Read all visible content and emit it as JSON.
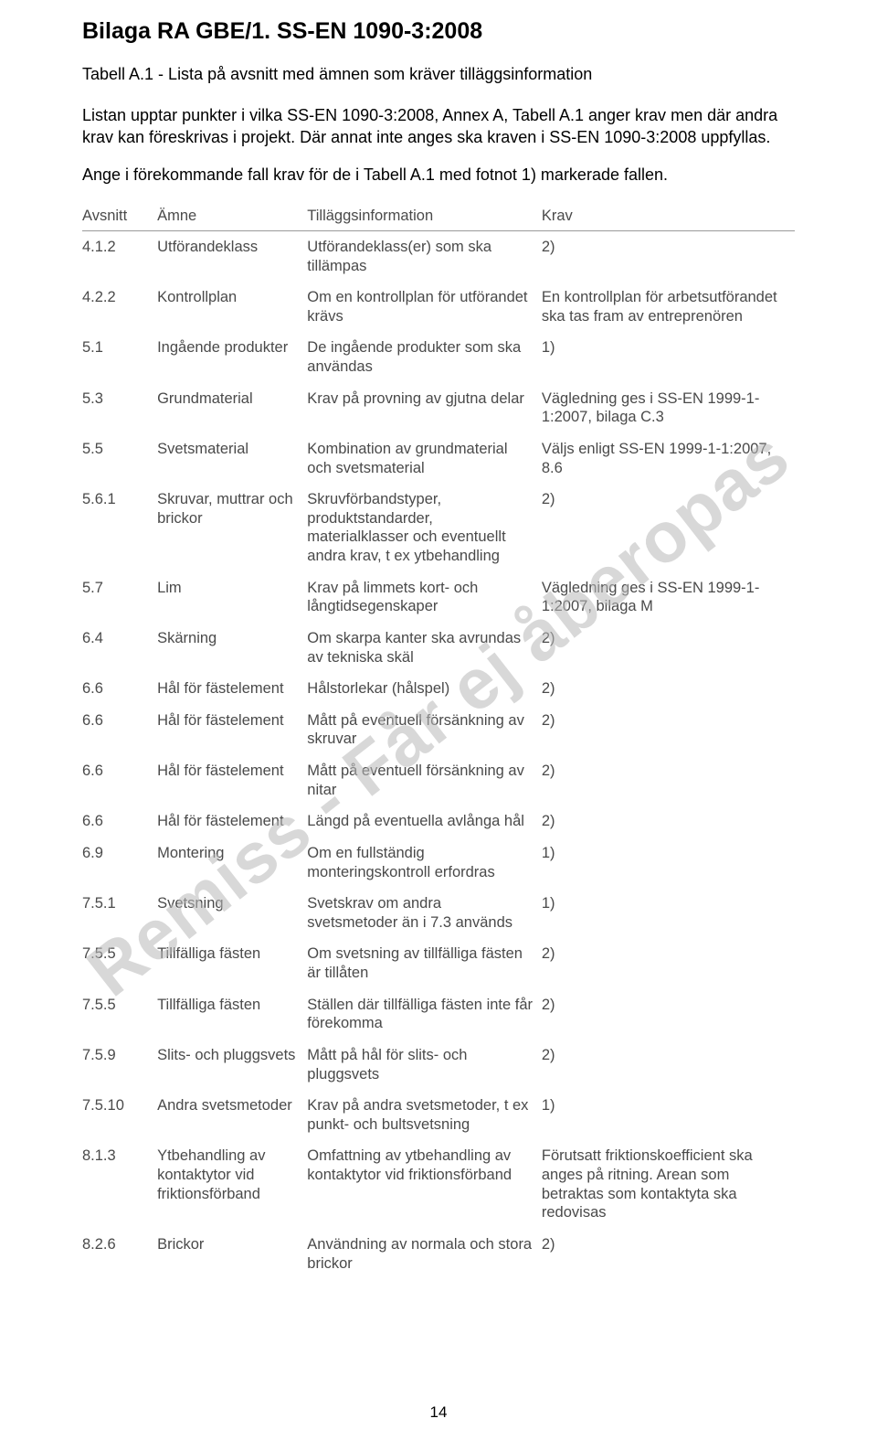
{
  "heading": "Bilaga RA GBE/1. SS-EN 1090-3:2008",
  "subheading": "Tabell A.1 - Lista på avsnitt med ämnen som kräver tilläggsinformation",
  "paragraph1": "Listan upptar punkter i vilka SS-EN 1090-3:2008, Annex A, Tabell A.1 anger krav men där andra krav kan föreskrivas i projekt. Där annat inte anges ska kraven i SS-EN 1090-3:2008 uppfyllas.",
  "paragraph2": "Ange i förekommande fall krav för de i Tabell A.1 med fotnot 1) markerade fallen.",
  "watermark": "Remiss - Får ej åberopas",
  "page_number": "14",
  "columns": {
    "c0": "Avsnitt",
    "c1": "Ämne",
    "c2": "Tilläggsinformation",
    "c3": "Krav"
  },
  "rows": [
    {
      "c0": "4.1.2",
      "c1": "Utförandeklass",
      "c2": "Utförandeklass(er) som ska tillämpas",
      "c3": "2)"
    },
    {
      "c0": "4.2.2",
      "c1": "Kontrollplan",
      "c2": "Om en kontrollplan för utförandet krävs",
      "c3": "En kontrollplan för arbetsutförandet ska tas fram av entreprenören"
    },
    {
      "c0": "5.1",
      "c1": "Ingående produkter",
      "c2": "De ingående produkter som ska användas",
      "c3": "1)"
    },
    {
      "c0": "5.3",
      "c1": "Grundmaterial",
      "c2": "Krav på provning av gjutna delar",
      "c3": "Vägledning ges i SS-EN 1999-1-1:2007, bilaga C.3"
    },
    {
      "c0": "5.5",
      "c1": "Svetsmaterial",
      "c2": "Kombination av grundmaterial och svetsmaterial",
      "c3": "Väljs enligt SS-EN 1999-1-1:2007, 8.6"
    },
    {
      "c0": "5.6.1",
      "c1": "Skruvar, muttrar och brickor",
      "c2": "Skruvförbandstyper, produktstandarder, materialklasser och eventuellt andra krav, t ex ytbehandling",
      "c3": "2)"
    },
    {
      "c0": "5.7",
      "c1": "Lim",
      "c2": "Krav på limmets kort- och långtidsegenskaper",
      "c3": "Vägledning ges i SS-EN 1999-1-1:2007, bilaga M"
    },
    {
      "c0": "6.4",
      "c1": "Skärning",
      "c2": "Om skarpa kanter ska avrundas av tekniska skäl",
      "c3": "2)"
    },
    {
      "c0": "6.6",
      "c1": "Hål för fästelement",
      "c2": "Hålstorlekar (hålspel)",
      "c3": "2)"
    },
    {
      "c0": "6.6",
      "c1": "Hål för fästelement",
      "c2": "Mått på eventuell försänkning av skruvar",
      "c3": "2)"
    },
    {
      "c0": "6.6",
      "c1": "Hål för fästelement",
      "c2": "Mått på eventuell försänkning av nitar",
      "c3": "2)"
    },
    {
      "c0": "6.6",
      "c1": "Hål för fästelement",
      "c2": "Längd på eventuella avlånga hål",
      "c3": "2)"
    },
    {
      "c0": "6.9",
      "c1": "Montering",
      "c2": "Om en fullständig monteringskontroll erfordras",
      "c3": "1)"
    },
    {
      "c0": "7.5.1",
      "c1": "Svetsning",
      "c2": "Svetskrav om andra svetsmetoder än i 7.3 används",
      "c3": "1)"
    },
    {
      "c0": "7.5.5",
      "c1": "Tillfälliga fästen",
      "c2": "Om svetsning av tillfälliga fästen är tillåten",
      "c3": "2)"
    },
    {
      "c0": "7.5.5",
      "c1": "Tillfälliga fästen",
      "c2": "Ställen där tillfälliga fästen inte får förekomma",
      "c3": "2)"
    },
    {
      "c0": "7.5.9",
      "c1": "Slits- och pluggsvets",
      "c2": "Mått på hål för slits- och pluggsvets",
      "c3": "2)"
    },
    {
      "c0": "7.5.10",
      "c1": "Andra svetsmetoder",
      "c2": "Krav på andra svetsmetoder, t ex punkt- och bultsvetsning",
      "c3": "1)"
    },
    {
      "c0": "8.1.3",
      "c1": "Ytbehandling av kontaktytor vid friktionsförband",
      "c2": "Omfattning av ytbehandling av kontaktytor vid friktionsförband",
      "c3": "Förutsatt friktionskoefficient ska anges på ritning. Arean som betraktas som kontaktyta ska redovisas"
    },
    {
      "c0": "8.2.6",
      "c1": "Brickor",
      "c2": "Användning av normala och stora brickor",
      "c3": "2)"
    }
  ]
}
